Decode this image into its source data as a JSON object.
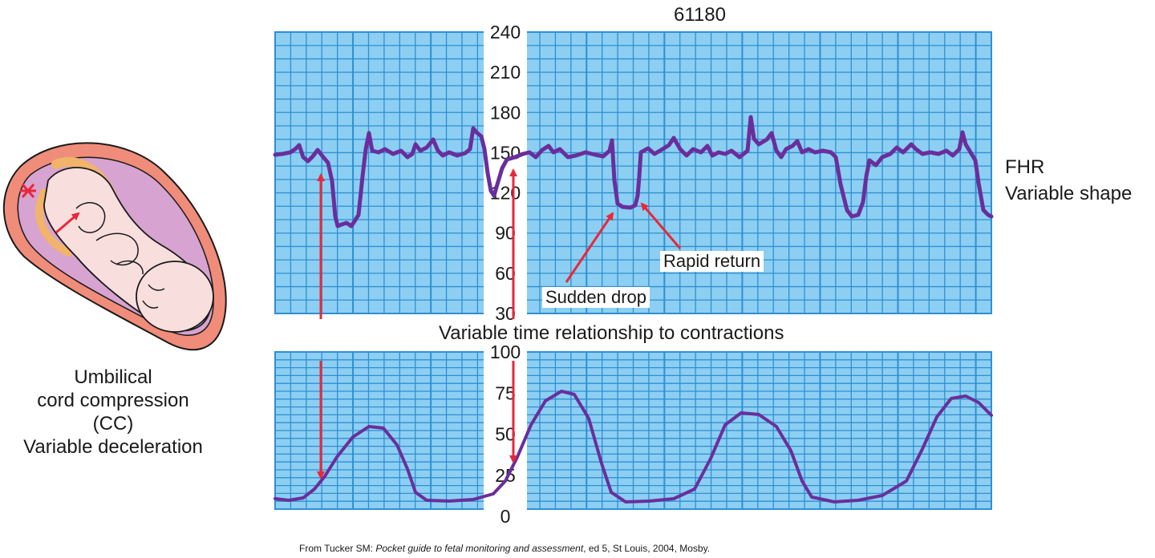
{
  "figure": {
    "strip_id": "61180",
    "fhr_label": "FHR",
    "fhr_sublabel": "Variable shape",
    "middle_caption": "Variable time relationship to contractions",
    "callouts": {
      "sudden_drop": "Sudden drop",
      "rapid_return": "Rapid return"
    },
    "illustration_caption": [
      "Umbilical",
      "cord compression",
      "(CC)",
      "Variable deceleration"
    ],
    "source": {
      "prefix": "From Tucker SM: ",
      "title": "Pocket guide to fetal monitoring and assessment",
      "suffix": ", ed 5, St Louis, 2004, Mosby."
    },
    "fhr_ticks": [
      "240",
      "210",
      "180",
      "150",
      "120",
      "90",
      "60",
      "30"
    ],
    "uc_ticks": [
      "100",
      "75",
      "50",
      "25",
      "0"
    ]
  },
  "colors": {
    "grid_bg": "#8ccff2",
    "grid_line": "#2f8fd2",
    "trace": "#6a2e9c",
    "arrow": "#e8283a",
    "uterus": "#f08c7a",
    "cord": "#f2b36a",
    "fetus": "#f9dede"
  }
}
